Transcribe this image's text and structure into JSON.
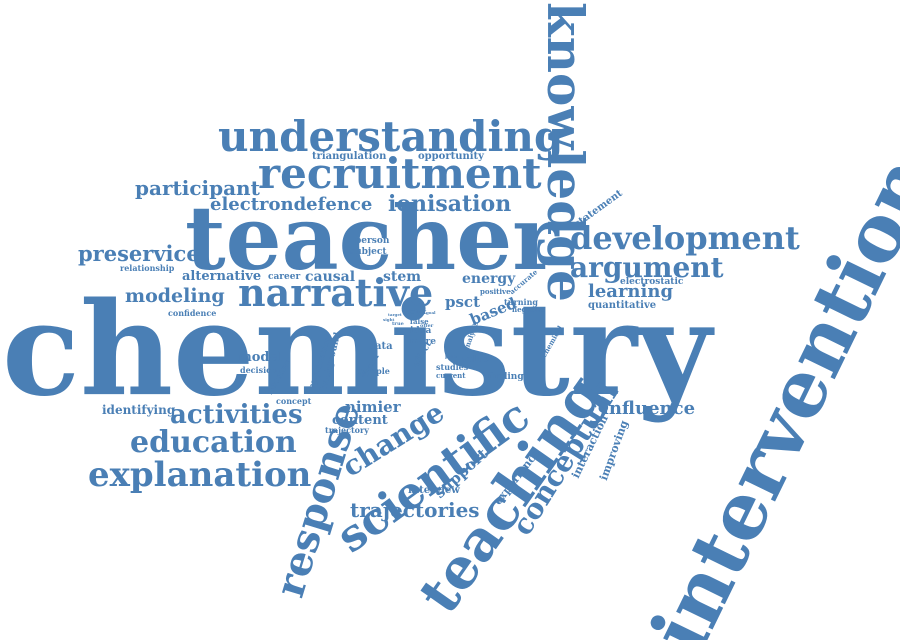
{
  "cloud": {
    "color": "#4a7fb5",
    "words": [
      "chemistry",
      "teacher",
      "intervention",
      "teaching",
      "knowledge",
      "understanding",
      "recruitment",
      "narrative",
      "scientific",
      "response",
      "explanation",
      "development",
      "argument",
      "education",
      "activities",
      "conceptual",
      "change",
      "ionisation",
      "electrondefence",
      "participant",
      "preservice",
      "modeling",
      "trajectories",
      "learning",
      "influence",
      "support",
      "nimier",
      "content",
      "identifying",
      "stem",
      "causal",
      "energy",
      "psct",
      "based",
      "alternative",
      "model",
      "triangulation",
      "opportunity",
      "person",
      "subject",
      "relationship",
      "confidence",
      "career",
      "statement",
      "electrostatic",
      "quantitative",
      "experience",
      "interaction",
      "improving",
      "interview",
      "concept",
      "trajectory",
      "application",
      "background",
      "became",
      "decision",
      "visual",
      "data",
      "sample",
      "idea",
      "more",
      "effect",
      "value",
      "finding",
      "studies",
      "current",
      "point",
      "positive",
      "accurate",
      "turning",
      "negative",
      "chemical",
      "analysis",
      "false",
      "offer",
      "true",
      "prior",
      "target",
      "sight",
      "goal"
    ]
  }
}
